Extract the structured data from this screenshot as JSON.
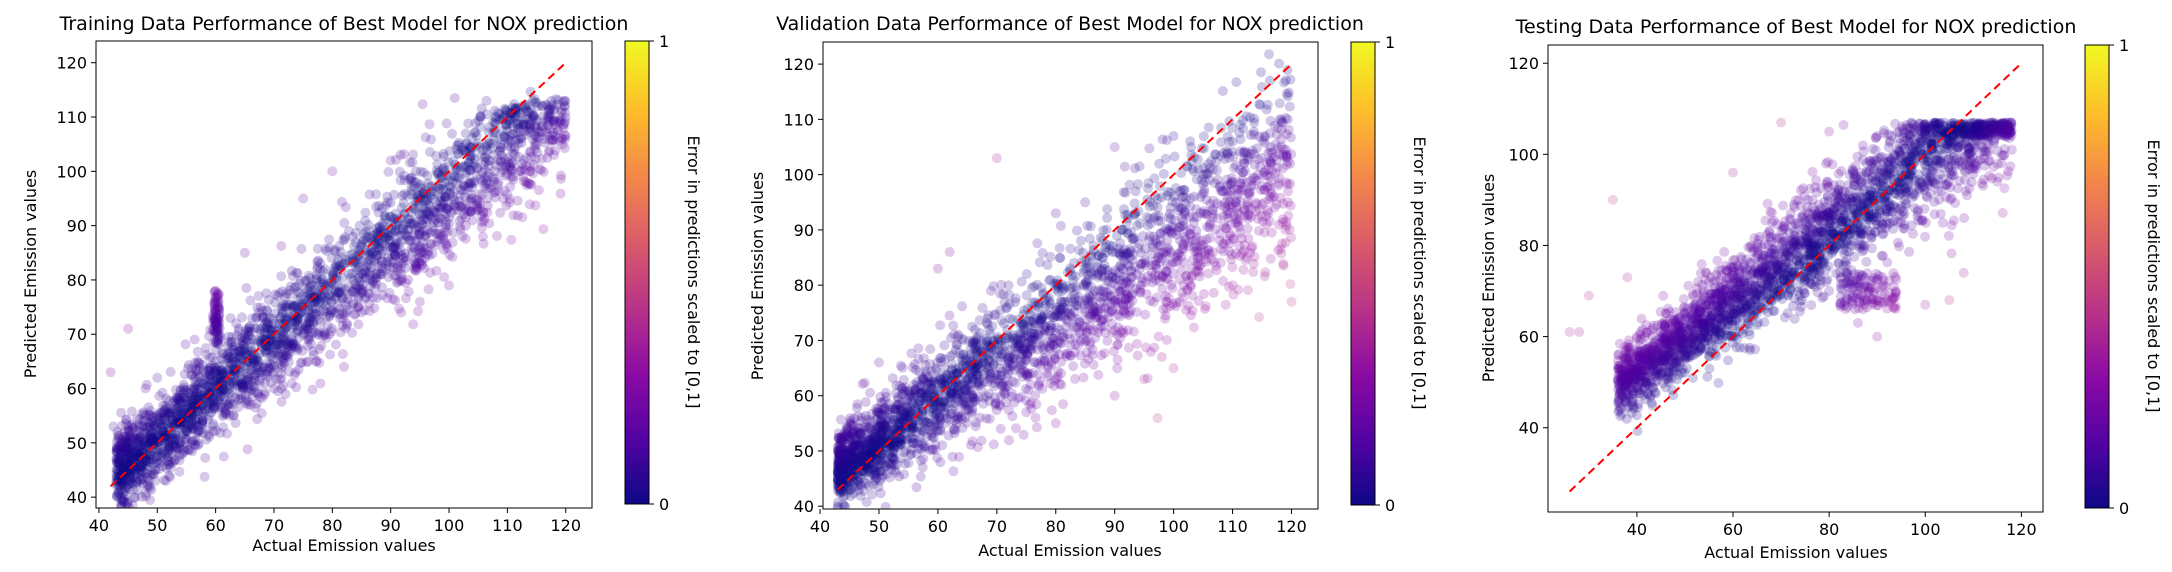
{
  "colormap_stops": [
    "#0d0887",
    "#5302a3",
    "#8b0aa5",
    "#b83289",
    "#db5c68",
    "#f48849",
    "#febd2a",
    "#f0f921"
  ],
  "point_color_base": "#1b0a8f",
  "reference_line_color": "#ff0000",
  "chart_data": [
    {
      "type": "scatter",
      "title": "Training Data Performance of Best Model for NOX prediction",
      "xlabel": "Actual Emission values",
      "ylabel": "Predicted Emission values",
      "xlim": [
        39.5,
        124.5
      ],
      "ylim": [
        38,
        124
      ],
      "xticks": [
        40,
        50,
        60,
        70,
        80,
        90,
        100,
        110,
        120
      ],
      "yticks": [
        40,
        50,
        60,
        70,
        80,
        90,
        100,
        110,
        120
      ],
      "reference_line": {
        "from": [
          42,
          42
        ],
        "to": [
          120,
          120
        ],
        "style": "dashed"
      },
      "colorbar": {
        "label": "Error in predictions scaled to [0,1]",
        "min": 0,
        "max": 1,
        "ticks": [
          "0",
          "1"
        ]
      },
      "sample_points": [
        [
          42.5,
          53
        ],
        [
          42,
          63
        ],
        [
          45,
          71
        ],
        [
          48,
          60
        ],
        [
          50,
          62
        ],
        [
          60,
          76
        ],
        [
          60,
          78
        ],
        [
          60,
          74
        ],
        [
          60,
          72
        ],
        [
          65,
          85
        ],
        [
          75,
          95
        ],
        [
          80,
          100
        ],
        [
          90,
          102
        ],
        [
          110,
          111
        ],
        [
          118,
          103
        ],
        [
          85,
          74
        ],
        [
          95,
          76
        ],
        [
          93,
          80
        ],
        [
          100,
          79
        ],
        [
          82,
          64
        ],
        [
          70,
          60
        ],
        [
          66,
          57
        ],
        [
          72,
          59
        ],
        [
          45,
          49
        ],
        [
          53,
          51
        ]
      ]
    },
    {
      "type": "scatter",
      "title": "Validation Data Performance of Best Model for NOX prediction",
      "xlabel": "Actual Emission values",
      "ylabel": "Predicted Emission values",
      "xlim": [
        40.5,
        124.5
      ],
      "ylim": [
        39.5,
        124
      ],
      "xticks": [
        40,
        50,
        60,
        70,
        80,
        90,
        100,
        110,
        120
      ],
      "yticks": [
        40,
        50,
        60,
        70,
        80,
        90,
        100,
        110,
        120
      ],
      "reference_line": {
        "from": [
          43,
          43
        ],
        "to": [
          120,
          120
        ],
        "style": "dashed"
      },
      "colorbar": {
        "label": "Error in predictions scaled to [0,1]",
        "min": 0,
        "max": 1,
        "ticks": [
          "0",
          "1"
        ]
      },
      "sample_points": [
        [
          44,
          47
        ],
        [
          50,
          66
        ],
        [
          60,
          83
        ],
        [
          70,
          103
        ],
        [
          80,
          93
        ],
        [
          85,
          95
        ],
        [
          90,
          105
        ],
        [
          100,
          107
        ],
        [
          110,
          106
        ],
        [
          118,
          110
        ],
        [
          120,
          77
        ],
        [
          100,
          65
        ],
        [
          95,
          63
        ],
        [
          110,
          80
        ],
        [
          98,
          67
        ],
        [
          90,
          60
        ],
        [
          80,
          55
        ],
        [
          75,
          57
        ],
        [
          69,
          64
        ],
        [
          66,
          70
        ],
        [
          88,
          85
        ],
        [
          105,
          100
        ],
        [
          115,
          98
        ],
        [
          62,
          86
        ],
        [
          72,
          80
        ]
      ]
    },
    {
      "type": "scatter",
      "title": "Testing Data Performance of Best Model for NOX prediction",
      "xlabel": "Actual Emission values",
      "ylabel": "Predicted Emission values",
      "xlim": [
        21.5,
        124.5
      ],
      "ylim": [
        21.5,
        124
      ],
      "xticks": [
        40,
        60,
        80,
        100,
        120
      ],
      "yticks": [
        40,
        60,
        80,
        100,
        120
      ],
      "reference_line": {
        "from": [
          26,
          26
        ],
        "to": [
          120,
          120
        ],
        "style": "dashed"
      },
      "colorbar": {
        "label": "Error in predictions scaled to [0,1]",
        "min": 0,
        "max": 1,
        "ticks": [
          "0",
          "1"
        ]
      },
      "sample_points": [
        [
          26,
          61
        ],
        [
          28,
          61
        ],
        [
          30,
          69
        ],
        [
          35,
          90
        ],
        [
          40,
          60
        ],
        [
          38,
          73
        ],
        [
          45,
          55
        ],
        [
          50,
          65
        ],
        [
          55,
          72
        ],
        [
          60,
          96
        ],
        [
          70,
          107
        ],
        [
          80,
          105
        ],
        [
          90,
          104
        ],
        [
          100,
          105
        ],
        [
          110,
          104
        ],
        [
          118,
          101
        ],
        [
          115,
          94
        ],
        [
          108,
          74
        ],
        [
          105,
          68
        ],
        [
          100,
          67
        ],
        [
          90,
          60
        ],
        [
          86,
          63
        ],
        [
          80,
          70
        ],
        [
          78,
          78
        ],
        [
          95,
          85
        ]
      ]
    }
  ]
}
